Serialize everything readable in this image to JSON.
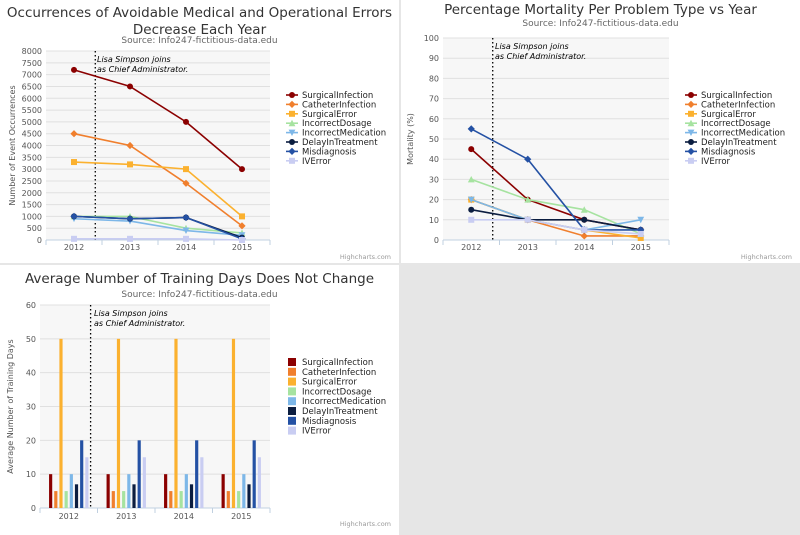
{
  "chart_data": [
    {
      "type": "line",
      "title": "Occurrences of Avoidable Medical and Operational Errors Decrease Each Year",
      "title_lines": [
        "Occurrences of Avoidable Medical and Operational Errors",
        "Decrease Each Year"
      ],
      "subtitle": "Source: Info247-fictitious-data.edu",
      "ylabel": "Number of Event Occurrences",
      "xlabel": "",
      "categories": [
        "2012",
        "2013",
        "2014",
        "2015"
      ],
      "ylim": [
        0,
        8000
      ],
      "yticks": [
        0,
        500,
        1000,
        1500,
        2000,
        2500,
        3000,
        3500,
        4000,
        4500,
        5000,
        5500,
        6000,
        6500,
        7000,
        7500,
        8000
      ],
      "grid": true,
      "legend_position": "right",
      "annotation": [
        "Lisa Simpson joins",
        "as Chief Administrator."
      ],
      "credits": "Highcharts.com",
      "series": [
        {
          "name": "SurgicalInfection",
          "color": "#8b0000",
          "marker": "circle",
          "values": [
            7200,
            6500,
            5000,
            3000
          ]
        },
        {
          "name": "CatheterInfection",
          "color": "#f07f2d",
          "marker": "diamond",
          "values": [
            4500,
            4000,
            2400,
            600
          ]
        },
        {
          "name": "SurgicalError",
          "color": "#fbb12f",
          "marker": "square",
          "values": [
            3300,
            3200,
            3000,
            1000
          ]
        },
        {
          "name": "IncorrectDosage",
          "color": "#a6e3a0",
          "marker": "triangle",
          "values": [
            1000,
            1000,
            500,
            300
          ]
        },
        {
          "name": "IncorrectMedication",
          "color": "#7db7e8",
          "marker": "triangle-down",
          "values": [
            900,
            800,
            400,
            200
          ]
        },
        {
          "name": "DelayInTreatment",
          "color": "#0b1d40",
          "marker": "circle",
          "values": [
            1000,
            900,
            950,
            100
          ]
        },
        {
          "name": "Misdiagnosis",
          "color": "#2451a4",
          "marker": "diamond",
          "values": [
            1000,
            900,
            950,
            50
          ]
        },
        {
          "name": "IVError",
          "color": "#c9cdf2",
          "marker": "square",
          "values": [
            50,
            50,
            50,
            0
          ]
        }
      ]
    },
    {
      "type": "line",
      "title": "Percentage Mortality Per Problem Type vs Year",
      "title_lines": [
        "Percentage Mortality Per Problem Type vs Year"
      ],
      "subtitle": "Source: Info247-fictitious-data.edu",
      "ylabel": "Mortality (%)",
      "xlabel": "",
      "categories": [
        "2012",
        "2013",
        "2014",
        "2015"
      ],
      "ylim": [
        0,
        100
      ],
      "yticks": [
        0,
        10,
        20,
        30,
        40,
        50,
        60,
        70,
        80,
        90,
        100
      ],
      "grid": true,
      "legend_position": "right",
      "annotation": [
        "Lisa Simpson joins",
        "as Chief Administrator."
      ],
      "credits": "Highcharts.com",
      "series": [
        {
          "name": "SurgicalInfection",
          "color": "#8b0000",
          "marker": "circle",
          "values": [
            45,
            20,
            10,
            5
          ]
        },
        {
          "name": "CatheterInfection",
          "color": "#f07f2d",
          "marker": "diamond",
          "values": [
            20,
            10,
            2,
            2
          ]
        },
        {
          "name": "SurgicalError",
          "color": "#fbb12f",
          "marker": "square",
          "values": [
            20,
            10,
            5,
            1
          ]
        },
        {
          "name": "IncorrectDosage",
          "color": "#a6e3a0",
          "marker": "triangle",
          "values": [
            30,
            20,
            15,
            3
          ]
        },
        {
          "name": "IncorrectMedication",
          "color": "#7db7e8",
          "marker": "triangle-down",
          "values": [
            20,
            10,
            5,
            10
          ]
        },
        {
          "name": "DelayInTreatment",
          "color": "#0b1d40",
          "marker": "circle",
          "values": [
            15,
            10,
            10,
            5
          ]
        },
        {
          "name": "Misdiagnosis",
          "color": "#2451a4",
          "marker": "diamond",
          "values": [
            55,
            40,
            5,
            5
          ]
        },
        {
          "name": "IVError",
          "color": "#c9cdf2",
          "marker": "square",
          "values": [
            10,
            10,
            5,
            3
          ]
        }
      ]
    },
    {
      "type": "bar",
      "title": "Average Number of Training Days Does Not Change",
      "title_lines": [
        "Average Number of Training Days Does Not Change"
      ],
      "subtitle": "Source: Info247-fictitious-data.edu",
      "ylabel": "Average Number of Training Days",
      "xlabel": "",
      "categories": [
        "2012",
        "2013",
        "2014",
        "2015"
      ],
      "ylim": [
        0,
        60
      ],
      "yticks": [
        0,
        10,
        20,
        30,
        40,
        50,
        60
      ],
      "grid": true,
      "legend_position": "right",
      "annotation": [
        "Lisa Simpson joins",
        "as Chief Administrator."
      ],
      "credits": "Highcharts.com",
      "series": [
        {
          "name": "SurgicalInfection",
          "color": "#8b0000",
          "values": [
            10,
            10,
            10,
            10
          ]
        },
        {
          "name": "CatheterInfection",
          "color": "#f07f2d",
          "values": [
            5,
            5,
            5,
            5
          ]
        },
        {
          "name": "SurgicalError",
          "color": "#fbb12f",
          "values": [
            50,
            50,
            50,
            50
          ]
        },
        {
          "name": "IncorrectDosage",
          "color": "#a6e3a0",
          "values": [
            5,
            5,
            5,
            5
          ]
        },
        {
          "name": "IncorrectMedication",
          "color": "#7db7e8",
          "values": [
            10,
            10,
            10,
            10
          ]
        },
        {
          "name": "DelayInTreatment",
          "color": "#0b1d40",
          "values": [
            7,
            7,
            7,
            7
          ]
        },
        {
          "name": "Misdiagnosis",
          "color": "#2451a4",
          "values": [
            20,
            20,
            20,
            20
          ]
        },
        {
          "name": "IVError",
          "color": "#c9cdf2",
          "values": [
            15,
            15,
            15,
            15
          ]
        }
      ]
    }
  ]
}
